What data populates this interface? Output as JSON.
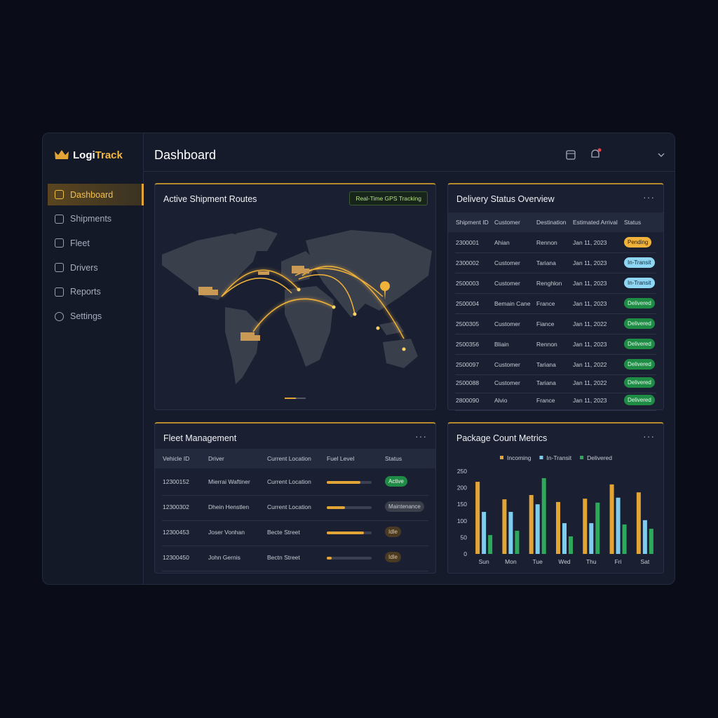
{
  "brand": [
    "Logi",
    "Track"
  ],
  "nav": [
    "Dashboard",
    "Shipments",
    "Fleet",
    "Drivers",
    "Reports",
    "Settings"
  ],
  "header": {
    "title": "Dashboard"
  },
  "map_card": {
    "title": "Active Shipment Routes",
    "badge": "Real-Time GPS Tracking"
  },
  "delivery": {
    "title": "Delivery Status Overview",
    "columns": [
      "Shipment ID",
      "Customer",
      "Destination",
      "Estimated Arrival",
      "Status"
    ],
    "rows": [
      [
        "2300001",
        "Ahian",
        "Rennon",
        "Jan 11, 2023",
        "Pending"
      ],
      [
        "2300002",
        "Customer",
        "Tariana",
        "Jan 11, 2023",
        "In-Transit"
      ],
      [
        "2500003",
        "Customer",
        "Renghlon",
        "Jan 11, 2023",
        "In-Transit"
      ],
      [
        "2500004",
        "Bemain Cane",
        "France",
        "Jan 11, 2023",
        "Delivered"
      ],
      [
        "2500305",
        "Customer",
        "Fiance",
        "Jan 11, 2022",
        "Delivered"
      ],
      [
        "2500356",
        "Bliain",
        "Rennon",
        "Jan 11, 2023",
        "Delivered"
      ],
      [
        "2500097",
        "Customer",
        "Tariana",
        "Jan 11, 2022",
        "Delivered"
      ],
      [
        "2500088",
        "Customer",
        "Tariana",
        "Jan 11, 2022",
        "Delivered"
      ],
      [
        "2800090",
        "Alvio",
        "France",
        "Jan 11, 2023",
        "Delivered"
      ]
    ]
  },
  "fleet": {
    "title": "Fleet Management",
    "columns": [
      "Vehicle ID",
      "Driver",
      "Current Location",
      "Fuel Level",
      "Status"
    ],
    "rows": [
      {
        "id": "12300152",
        "driver": "Mierrai Waftiner",
        "location": "Current Location",
        "fuel": 75,
        "status": "Active"
      },
      {
        "id": "12300302",
        "driver": "Dhein Henstlen",
        "location": "Current Location",
        "fuel": 40,
        "status": "Maintenance"
      },
      {
        "id": "12300453",
        "driver": "Joser Vonhan",
        "location": "Becte Street",
        "fuel": 83,
        "status": "Idle"
      },
      {
        "id": "12300450",
        "driver": "John Gernis",
        "location": "Bectn Street",
        "fuel": 11,
        "status": "Idle"
      }
    ]
  },
  "chart_data": {
    "type": "bar",
    "title": "Package Count Metrics",
    "categories": [
      "Sun",
      "Mon",
      "Tue",
      "Wed",
      "Thu",
      "Fri",
      "Sat"
    ],
    "series": [
      {
        "name": "Incoming",
        "color": "#e3a436",
        "values": [
          218,
          165,
          178,
          157,
          167,
          210,
          186
        ]
      },
      {
        "name": "In-Transit",
        "color": "#7fcdee",
        "values": [
          127,
          127,
          150,
          93,
          93,
          170,
          102
        ]
      },
      {
        "name": "Delivered",
        "color": "#2ea85a",
        "values": [
          57,
          70,
          229,
          53,
          155,
          89,
          76
        ]
      }
    ],
    "ylim": [
      0,
      250
    ],
    "yticks": [
      0,
      50,
      100,
      150,
      200,
      250
    ]
  }
}
